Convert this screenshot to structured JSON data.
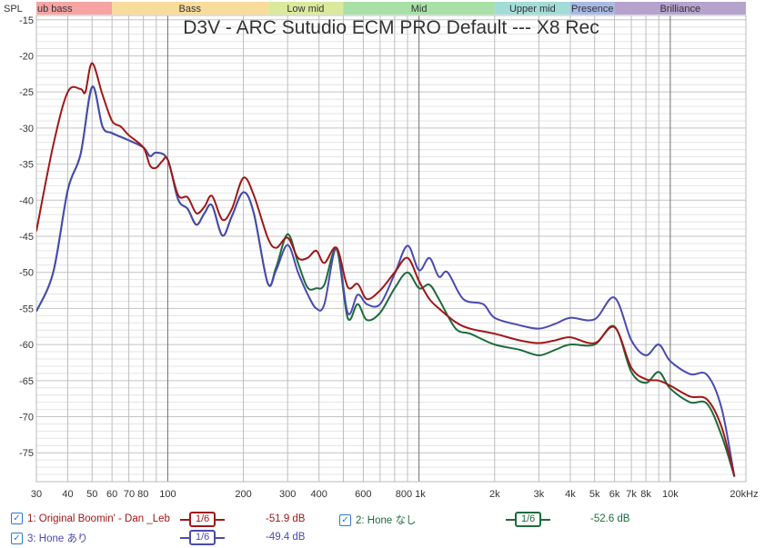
{
  "chart_data": {
    "type": "line",
    "title": "D3V - ARC Sutudio ECM PRO Default --- X8 Rec",
    "ylabel": "SPL",
    "xscale": "log",
    "xlim": [
      30,
      20000
    ],
    "ylim": [
      -79,
      -14.4
    ],
    "grid": true,
    "xticks": [
      30,
      40,
      50,
      60,
      70,
      80,
      100,
      200,
      300,
      400,
      600,
      800,
      1000,
      2000,
      3000,
      4000,
      5000,
      6000,
      7000,
      8000,
      10000,
      20000
    ],
    "xtick_labels": [
      "30",
      "40",
      "50",
      "60",
      "70 80",
      "",
      "100",
      "200",
      "300",
      "400",
      "600",
      "800 1k",
      "",
      "2k",
      "3k",
      "4k",
      "5k",
      "6k",
      "7k",
      "8k",
      "10k",
      "20kHz"
    ],
    "yticks": [
      -15,
      -20,
      -25,
      -30,
      -35,
      -40,
      -45,
      -50,
      -55,
      -60,
      -65,
      -70,
      -75
    ],
    "bands": [
      {
        "label": "ub bass",
        "from": 30,
        "to": 60,
        "color": "#f5a3a3"
      },
      {
        "label": "Bass",
        "from": 60,
        "to": 250,
        "color": "#f8dc9b"
      },
      {
        "label": "Low mid",
        "from": 250,
        "to": 500,
        "color": "#dbe99c"
      },
      {
        "label": "Mid",
        "from": 500,
        "to": 2000,
        "color": "#a8e0a8"
      },
      {
        "label": "Upper mid",
        "from": 2000,
        "to": 4000,
        "color": "#a2dcd8"
      },
      {
        "label": "Presence",
        "from": 4000,
        "to": 6000,
        "color": "#a9b9e6"
      },
      {
        "label": "Brilliance",
        "from": 6000,
        "to": 20000,
        "color": "#b5a2cd"
      }
    ],
    "series": [
      {
        "name": "1: Original Boomin' - Dan _Leb",
        "color": "#a01818",
        "smoothing": "1/6",
        "level": "-51.9 dB",
        "x": [
          30,
          35,
          40,
          45,
          47,
          50,
          55,
          60,
          65,
          70,
          80,
          85,
          90,
          95,
          100,
          110,
          120,
          130,
          140,
          150,
          165,
          180,
          200,
          220,
          250,
          270,
          300,
          330,
          360,
          390,
          420,
          470,
          520,
          570,
          620,
          700,
          800,
          900,
          1000,
          1100,
          1200,
          1400,
          1600,
          2000,
          2500,
          3000,
          3500,
          4000,
          5000,
          6000,
          7000,
          8000,
          9000,
          10000,
          12000,
          14000,
          16000,
          18000
        ],
        "y": [
          -44.3,
          -32.4,
          -25,
          -24.6,
          -25,
          -21,
          -25.4,
          -29,
          -29.8,
          -31,
          -32.7,
          -35.2,
          -35.5,
          -34.6,
          -34.4,
          -39.3,
          -39.6,
          -41.8,
          -40.9,
          -39.4,
          -42.7,
          -41.2,
          -36.9,
          -39.3,
          -45.2,
          -46.6,
          -45.2,
          -48,
          -48,
          -47,
          -48.7,
          -46.6,
          -52,
          -51.6,
          -53.7,
          -52.5,
          -50,
          -48,
          -51.2,
          -53.7,
          -55,
          -56.9,
          -57.8,
          -58.5,
          -59.4,
          -59.8,
          -59.4,
          -59,
          -59.8,
          -57.6,
          -63.2,
          -64.8,
          -65,
          -65.7,
          -67.2,
          -67.6,
          -71.4,
          -78.3
        ]
      },
      {
        "name": "2: Hone なし",
        "color": "#1e6b3c",
        "smoothing": "1/6",
        "level": "-52.6 dB",
        "x": [
          30,
          35,
          40,
          45,
          50,
          55,
          60,
          70,
          80,
          85,
          90,
          100,
          110,
          120,
          130,
          140,
          150,
          165,
          180,
          200,
          220,
          250,
          270,
          300,
          330,
          360,
          390,
          420,
          470,
          520,
          570,
          620,
          700,
          800,
          900,
          1000,
          1100,
          1200,
          1400,
          1600,
          2000,
          2500,
          3000,
          3500,
          4000,
          5000,
          6000,
          7000,
          8000,
          9000,
          10000,
          12000,
          14000,
          16000,
          18000
        ],
        "y": [
          -55.4,
          -50,
          -38.6,
          -33.6,
          -24.3,
          -29.8,
          -30.7,
          -31.7,
          -32.7,
          -33.9,
          -33.4,
          -34.4,
          -39.9,
          -41.2,
          -43.4,
          -41.8,
          -40.7,
          -44.9,
          -42.2,
          -38.9,
          -41.8,
          -51.5,
          -49.3,
          -44.7,
          -48.7,
          -52.1,
          -52.2,
          -51.7,
          -46.8,
          -56.3,
          -54.4,
          -56.6,
          -55.6,
          -52.2,
          -50,
          -52.2,
          -51.7,
          -53.7,
          -57.8,
          -58.5,
          -60,
          -60.7,
          -61.5,
          -60.7,
          -60,
          -60,
          -57.5,
          -63.8,
          -65.3,
          -63.8,
          -66.1,
          -68,
          -68.2,
          -72.6,
          -78.3
        ]
      },
      {
        "name": "3: Hone あり",
        "color": "#4a4ab0",
        "smoothing": "1/6",
        "level": "-49.4 dB",
        "x": [
          30,
          35,
          40,
          45,
          50,
          55,
          60,
          70,
          80,
          85,
          90,
          100,
          110,
          120,
          130,
          140,
          150,
          165,
          180,
          200,
          220,
          250,
          270,
          300,
          330,
          360,
          390,
          420,
          470,
          520,
          570,
          620,
          700,
          800,
          900,
          1000,
          1100,
          1200,
          1300,
          1500,
          1800,
          2000,
          2500,
          3000,
          3500,
          4000,
          5000,
          6000,
          7000,
          8000,
          9000,
          10000,
          12000,
          14000,
          16000,
          18000
        ],
        "y": [
          -55.4,
          -50,
          -38.6,
          -33.6,
          -24.3,
          -29.8,
          -30.7,
          -31.7,
          -32.7,
          -33.9,
          -33.4,
          -34.4,
          -39.9,
          -41.2,
          -43.4,
          -41.8,
          -40.7,
          -44.9,
          -42.2,
          -38.9,
          -41.8,
          -51.5,
          -49.7,
          -46.2,
          -50,
          -53,
          -55,
          -54.4,
          -46.6,
          -55.6,
          -53.1,
          -54.4,
          -54.4,
          -50.2,
          -46.3,
          -49.7,
          -48,
          -50.6,
          -50,
          -53.7,
          -54.4,
          -56.3,
          -57.3,
          -57.8,
          -57.1,
          -56.3,
          -56.5,
          -53.5,
          -59.4,
          -61.5,
          -60,
          -62.3,
          -64.1,
          -64.2,
          -68.8,
          -78.3
        ]
      }
    ]
  },
  "check_icon": "check-icon"
}
